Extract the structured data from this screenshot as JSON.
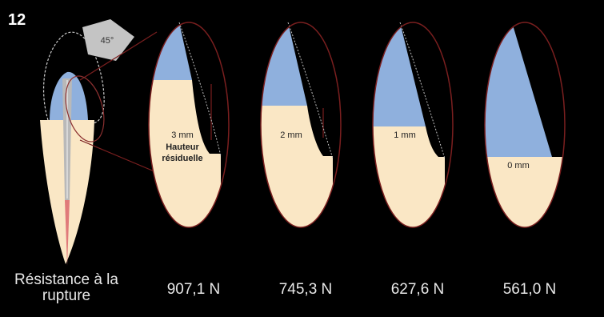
{
  "figure_number": "12",
  "angle_label": "45°",
  "legend_label": "Résistance à la rupture",
  "specimens": [
    {
      "height_label": "3 mm",
      "extra_label_1": "Hauteur",
      "extra_label_2": "résiduelle",
      "force": "907,1 N"
    },
    {
      "height_label": "2 mm",
      "force": "745,3 N"
    },
    {
      "height_label": "1 mm",
      "force": "627,6 N"
    },
    {
      "height_label": "0 mm",
      "force": "561,0 N"
    }
  ],
  "colors": {
    "background": "#000000",
    "dentin": "#fae7c5",
    "crown_blue": "#8fb0dd",
    "outline": "#7a1f1f",
    "post": "#b9b9b9",
    "root_canal": "#e07a7a",
    "angle_badge": "#c4c4c4"
  }
}
